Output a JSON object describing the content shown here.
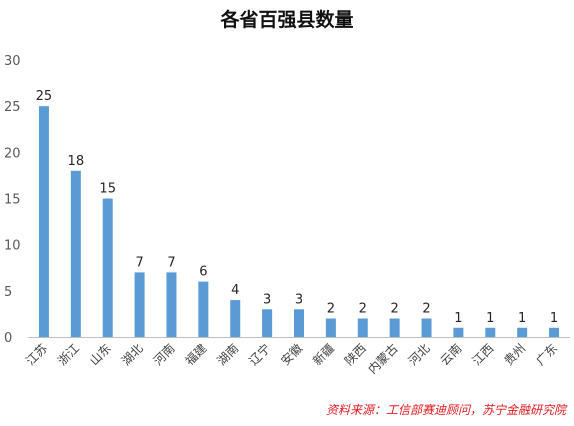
{
  "chart_data": {
    "type": "bar",
    "title": "各省百强县数量",
    "categories": [
      "江苏",
      "浙江",
      "山东",
      "湖北",
      "河南",
      "福建",
      "湖南",
      "辽宁",
      "安徽",
      "新疆",
      "陕西",
      "内蒙古",
      "河北",
      "云南",
      "江西",
      "贵州",
      "广东"
    ],
    "values": [
      25,
      18,
      15,
      7,
      7,
      6,
      4,
      3,
      3,
      2,
      2,
      2,
      2,
      1,
      1,
      1,
      1
    ],
    "y_ticks": [
      "0",
      "5",
      "10",
      "15",
      "20",
      "25",
      "30"
    ],
    "ylim": [
      0,
      30
    ],
    "xlabel": "",
    "ylabel": "",
    "grid": false,
    "bar_color": "#5b9bd5",
    "data_labels": true
  },
  "source_note": "资料来源：工信部赛迪顾问，苏宁金融研究院",
  "colors": {
    "source_note": "#e0191e",
    "axis": "#bfbfbf"
  }
}
